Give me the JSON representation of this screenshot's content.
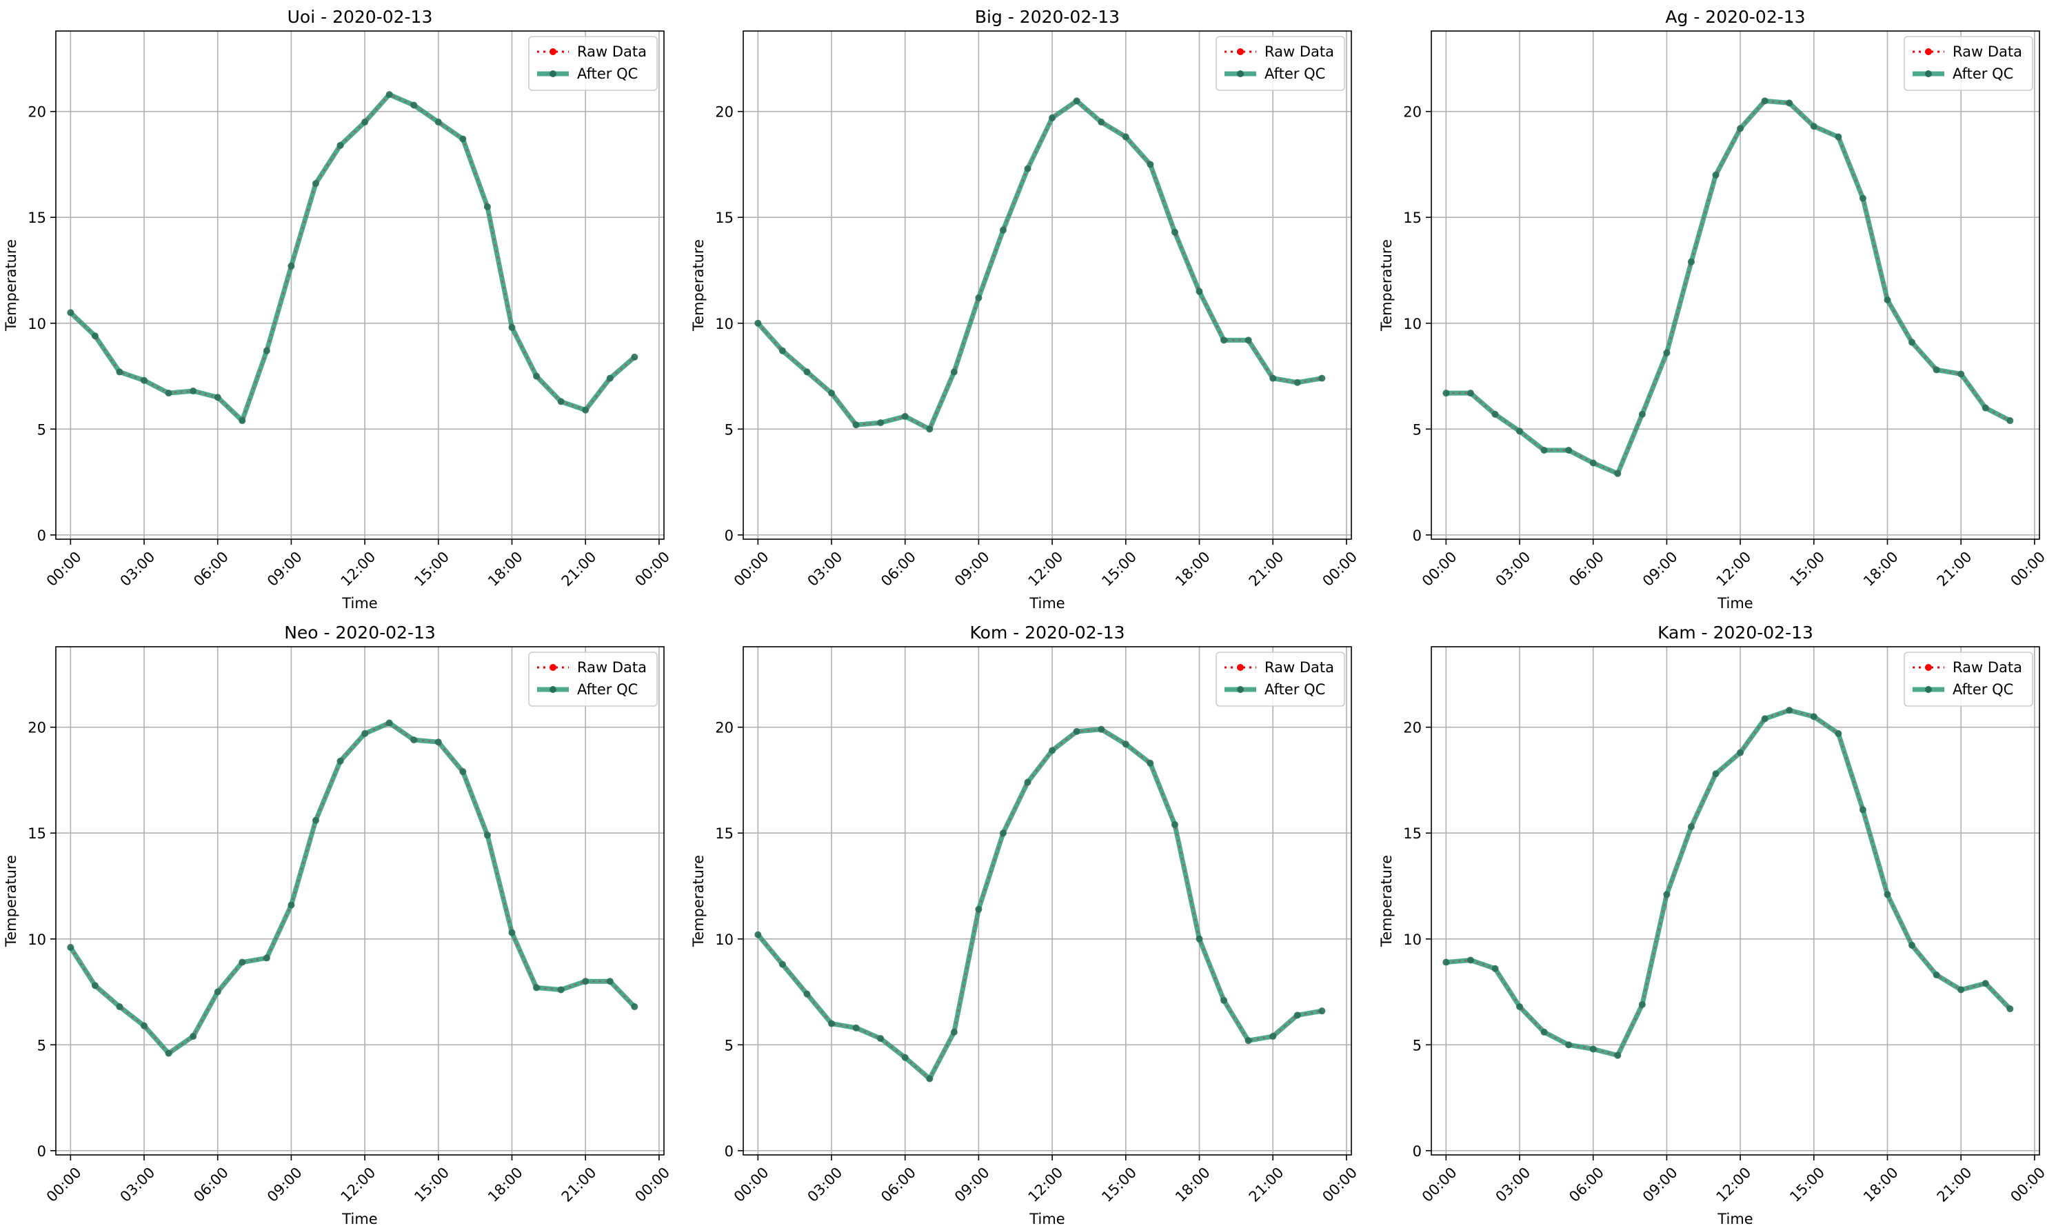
{
  "series_names": [
    "Raw Data",
    "After QC"
  ],
  "colors": {
    "raw": "#ff0000",
    "qc": "#2e9a7a",
    "grid": "#b0b0b0",
    "axis": "#000000"
  },
  "axes_common": {
    "xlabel": "Time",
    "ylabel": "Temperature",
    "xtick_labels": [
      "00:00",
      "03:00",
      "06:00",
      "09:00",
      "12:00",
      "15:00",
      "18:00",
      "21:00",
      "00:00"
    ],
    "xtick_hours": [
      0,
      3,
      6,
      9,
      12,
      15,
      18,
      21,
      24
    ],
    "xlim_hours": [
      -0.6,
      24.2
    ],
    "yticks": [
      0,
      5,
      10,
      15,
      20
    ],
    "ylim": [
      -0.2,
      23.8
    ],
    "grid": true,
    "legend": "upper-right"
  },
  "chart_data": [
    {
      "type": "line",
      "title": "Uoi - 2020-02-13",
      "x_hours": [
        0,
        1,
        2,
        3,
        4,
        5,
        6,
        7,
        8,
        9,
        10,
        11,
        12,
        13,
        14,
        15,
        16,
        17,
        18,
        19,
        20,
        21,
        22,
        23
      ],
      "series": [
        {
          "name": "Raw Data",
          "values": [
            10.5,
            9.4,
            7.7,
            7.3,
            6.7,
            6.8,
            6.5,
            5.4,
            8.7,
            12.7,
            16.6,
            18.4,
            19.5,
            20.8,
            20.3,
            19.5,
            18.7,
            15.5,
            9.8,
            7.5,
            6.3,
            5.9,
            7.4,
            8.4
          ]
        },
        {
          "name": "After QC",
          "values": [
            10.5,
            9.4,
            7.7,
            7.3,
            6.7,
            6.8,
            6.5,
            5.4,
            8.7,
            12.7,
            16.6,
            18.4,
            19.5,
            20.8,
            20.3,
            19.5,
            18.7,
            15.5,
            9.8,
            7.5,
            6.3,
            5.9,
            7.4,
            8.4
          ]
        }
      ]
    },
    {
      "type": "line",
      "title": "Big - 2020-02-13",
      "x_hours": [
        0,
        1,
        2,
        3,
        4,
        5,
        6,
        7,
        8,
        9,
        10,
        11,
        12,
        13,
        14,
        15,
        16,
        17,
        18,
        19,
        20,
        21,
        22,
        23
      ],
      "series": [
        {
          "name": "Raw Data",
          "values": [
            10.0,
            8.7,
            7.7,
            6.7,
            5.2,
            5.3,
            5.6,
            5.0,
            7.7,
            11.2,
            14.4,
            17.3,
            19.7,
            20.5,
            19.5,
            18.8,
            17.5,
            14.3,
            11.5,
            9.2,
            9.2,
            7.4,
            7.2,
            7.4
          ]
        },
        {
          "name": "After QC",
          "values": [
            10.0,
            8.7,
            7.7,
            6.7,
            5.2,
            5.3,
            5.6,
            5.0,
            7.7,
            11.2,
            14.4,
            17.3,
            19.7,
            20.5,
            19.5,
            18.8,
            17.5,
            14.3,
            11.5,
            9.2,
            9.2,
            7.4,
            7.2,
            7.4
          ]
        }
      ]
    },
    {
      "type": "line",
      "title": "Ag - 2020-02-13",
      "x_hours": [
        0,
        1,
        2,
        3,
        4,
        5,
        6,
        7,
        8,
        9,
        10,
        11,
        12,
        13,
        14,
        15,
        16,
        17,
        18,
        19,
        20,
        21,
        22,
        23
      ],
      "series": [
        {
          "name": "Raw Data",
          "values": [
            6.7,
            6.7,
            5.7,
            4.9,
            4.0,
            4.0,
            3.4,
            2.9,
            5.7,
            8.6,
            12.9,
            17.0,
            19.2,
            20.5,
            20.4,
            19.3,
            18.8,
            15.9,
            11.1,
            9.1,
            7.8,
            7.6,
            6.0,
            5.4
          ]
        },
        {
          "name": "After QC",
          "values": [
            6.7,
            6.7,
            5.7,
            4.9,
            4.0,
            4.0,
            3.4,
            2.9,
            5.7,
            8.6,
            12.9,
            17.0,
            19.2,
            20.5,
            20.4,
            19.3,
            18.8,
            15.9,
            11.1,
            9.1,
            7.8,
            7.6,
            6.0,
            5.4
          ]
        }
      ]
    },
    {
      "type": "line",
      "title": "Neo - 2020-02-13",
      "x_hours": [
        0,
        1,
        2,
        3,
        4,
        5,
        6,
        7,
        8,
        9,
        10,
        11,
        12,
        13,
        14,
        15,
        16,
        17,
        18,
        19,
        20,
        21,
        22,
        23
      ],
      "series": [
        {
          "name": "Raw Data",
          "values": [
            9.6,
            7.8,
            6.8,
            5.9,
            4.6,
            5.4,
            7.5,
            8.9,
            9.1,
            11.6,
            15.6,
            18.4,
            19.7,
            20.2,
            19.4,
            19.3,
            17.9,
            14.9,
            10.3,
            7.7,
            7.6,
            8.0,
            8.0,
            6.8
          ]
        },
        {
          "name": "After QC",
          "values": [
            9.6,
            7.8,
            6.8,
            5.9,
            4.6,
            5.4,
            7.5,
            8.9,
            9.1,
            11.6,
            15.6,
            18.4,
            19.7,
            20.2,
            19.4,
            19.3,
            17.9,
            14.9,
            10.3,
            7.7,
            7.6,
            8.0,
            8.0,
            6.8
          ]
        }
      ]
    },
    {
      "type": "line",
      "title": "Kom - 2020-02-13",
      "x_hours": [
        0,
        1,
        2,
        3,
        4,
        5,
        6,
        7,
        8,
        9,
        10,
        11,
        12,
        13,
        14,
        15,
        16,
        17,
        18,
        19,
        20,
        21,
        22,
        23
      ],
      "series": [
        {
          "name": "Raw Data",
          "values": [
            10.2,
            8.8,
            7.4,
            6.0,
            5.8,
            5.3,
            4.4,
            3.4,
            5.6,
            11.4,
            15.0,
            17.4,
            18.9,
            19.8,
            19.9,
            19.2,
            18.3,
            15.4,
            10.0,
            7.1,
            5.2,
            5.4,
            6.4,
            6.6
          ]
        },
        {
          "name": "After QC",
          "values": [
            10.2,
            8.8,
            7.4,
            6.0,
            5.8,
            5.3,
            4.4,
            3.4,
            5.6,
            11.4,
            15.0,
            17.4,
            18.9,
            19.8,
            19.9,
            19.2,
            18.3,
            15.4,
            10.0,
            7.1,
            5.2,
            5.4,
            6.4,
            6.6
          ]
        }
      ]
    },
    {
      "type": "line",
      "title": "Kam - 2020-02-13",
      "x_hours": [
        0,
        1,
        2,
        3,
        4,
        5,
        6,
        7,
        8,
        9,
        10,
        11,
        12,
        13,
        14,
        15,
        16,
        17,
        18,
        19,
        20,
        21,
        22,
        23
      ],
      "series": [
        {
          "name": "Raw Data",
          "values": [
            8.9,
            9.0,
            8.6,
            6.8,
            5.6,
            5.0,
            4.8,
            4.5,
            6.9,
            12.1,
            15.3,
            17.8,
            18.8,
            20.4,
            20.8,
            20.5,
            19.7,
            16.1,
            12.1,
            9.7,
            8.3,
            7.6,
            7.9,
            6.7
          ]
        },
        {
          "name": "After QC",
          "values": [
            8.9,
            9.0,
            8.6,
            6.8,
            5.6,
            5.0,
            4.8,
            4.5,
            6.9,
            12.1,
            15.3,
            17.8,
            18.8,
            20.4,
            20.8,
            20.5,
            19.7,
            16.1,
            12.1,
            9.7,
            8.3,
            7.6,
            7.9,
            6.7
          ]
        }
      ]
    }
  ]
}
